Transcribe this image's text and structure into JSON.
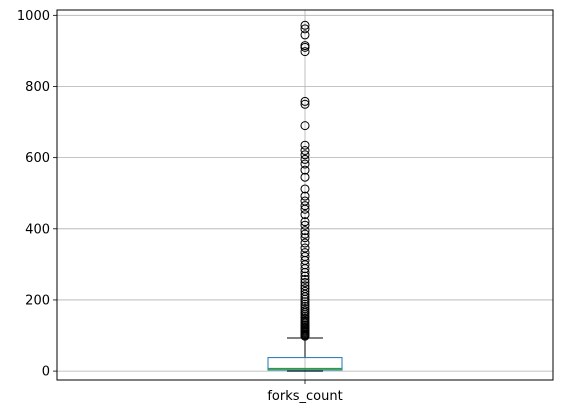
{
  "chart_data": {
    "type": "box",
    "title": "",
    "xlabel": "",
    "ylabel": "",
    "categories": [
      "forks_count"
    ],
    "ylim": [
      -25,
      1015
    ],
    "y_ticks": [
      0,
      200,
      400,
      600,
      800,
      1000
    ],
    "y_tick_labels": [
      "0",
      "200",
      "400",
      "600",
      "800",
      "1000"
    ],
    "grid": true,
    "box": {
      "whisker_low": 0,
      "q1": 3,
      "median": 7,
      "q3": 38,
      "whisker_high": 93
    },
    "outliers": [
      98,
      101,
      104,
      107,
      110,
      113,
      116,
      119,
      122,
      125,
      129,
      133,
      137,
      141,
      146,
      150,
      155,
      160,
      165,
      170,
      176,
      182,
      188,
      195,
      202,
      209,
      216,
      224,
      232,
      240,
      249,
      258,
      267,
      277,
      288,
      299,
      311,
      322,
      333,
      346,
      360,
      375,
      385,
      395,
      410,
      420,
      440,
      455,
      465,
      478,
      492,
      512,
      545,
      565,
      582,
      595,
      608,
      620,
      635,
      690,
      750,
      758,
      898,
      910,
      915,
      945,
      962,
      972
    ],
    "colors": {
      "box": "#1f77b4",
      "median": "#2ca02c",
      "whisker": "#000000",
      "grid": "#b0b0b0"
    }
  }
}
